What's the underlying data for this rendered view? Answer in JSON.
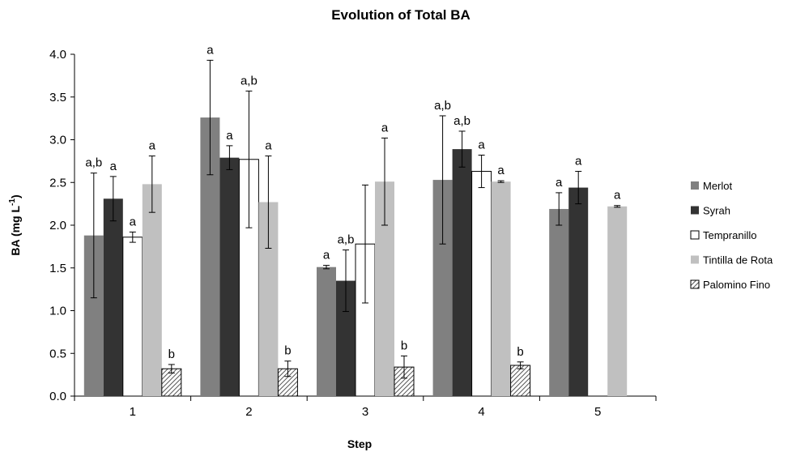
{
  "chart_data": {
    "type": "bar",
    "title": "Evolution of Total BA",
    "xlabel": "Step",
    "ylabel": "BA (mg L",
    "ylabel_superscript": "-1",
    "ylabel_close": ")",
    "ylim": [
      0,
      4.0
    ],
    "yticks": [
      "0.0",
      "0.5",
      "1.0",
      "1.5",
      "2.0",
      "2.5",
      "3.0",
      "3.5",
      "4.0"
    ],
    "categories": [
      "1",
      "2",
      "3",
      "4",
      "5"
    ],
    "legend_position": "right",
    "grid": false,
    "series": [
      {
        "name": "Merlot",
        "color": "#808080",
        "pattern": "solid",
        "values": [
          1.88,
          3.26,
          1.51,
          2.53,
          2.19
        ],
        "err": [
          0.73,
          0.67,
          0.02,
          0.75,
          0.19
        ],
        "labels": [
          "a,b",
          "a",
          "a",
          "a,b",
          "a"
        ]
      },
      {
        "name": "Syrah",
        "color": "#333333",
        "pattern": "solid",
        "values": [
          2.31,
          2.79,
          1.35,
          2.89,
          2.44
        ],
        "err": [
          0.26,
          0.14,
          0.36,
          0.21,
          0.19
        ],
        "labels": [
          "a",
          "a",
          "a,b",
          "a,b",
          "a"
        ]
      },
      {
        "name": "Tempranillo",
        "color": "#ffffff",
        "pattern": "outline",
        "values": [
          1.86,
          2.77,
          1.78,
          2.63,
          null
        ],
        "err": [
          0.06,
          0.8,
          0.69,
          0.19,
          null
        ],
        "labels": [
          "a",
          "a,b",
          "",
          "a",
          ""
        ]
      },
      {
        "name": "Tintilla de Rota",
        "color": "#c0c0c0",
        "pattern": "solid",
        "values": [
          2.48,
          2.27,
          2.51,
          2.51,
          2.22
        ],
        "err": [
          0.33,
          0.54,
          0.51,
          0.01,
          0.01
        ],
        "labels": [
          "a",
          "a",
          "a",
          "a",
          "a"
        ]
      },
      {
        "name": "Palomino Fino",
        "color": "#d8d8d8",
        "pattern": "hatch",
        "values": [
          0.32,
          0.32,
          0.34,
          0.36,
          null
        ],
        "err": [
          0.05,
          0.09,
          0.13,
          0.04,
          null
        ],
        "labels": [
          "b",
          "b",
          "b",
          "b",
          ""
        ]
      }
    ]
  }
}
